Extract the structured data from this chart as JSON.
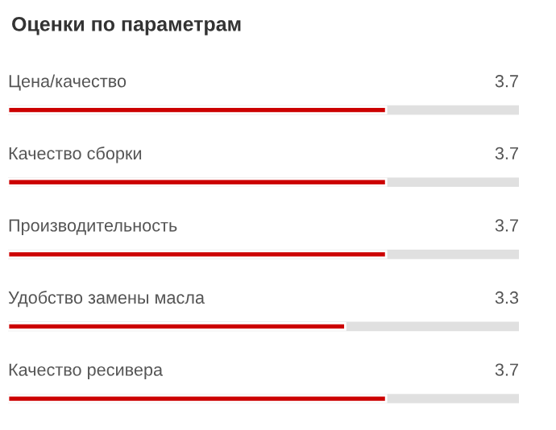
{
  "chart_data": {
    "type": "bar",
    "orientation": "horizontal",
    "title": "Оценки по параметрам",
    "categories": [
      "Цена/качество",
      "Качество сборки",
      "Производительность",
      "Удобство замены масла",
      "Качество ресивера"
    ],
    "values": [
      3.7,
      3.7,
      3.7,
      3.3,
      3.7
    ],
    "color": "#cc0000",
    "xlim": [
      0,
      5
    ],
    "data_labels": true,
    "tick_labels": false
  }
}
